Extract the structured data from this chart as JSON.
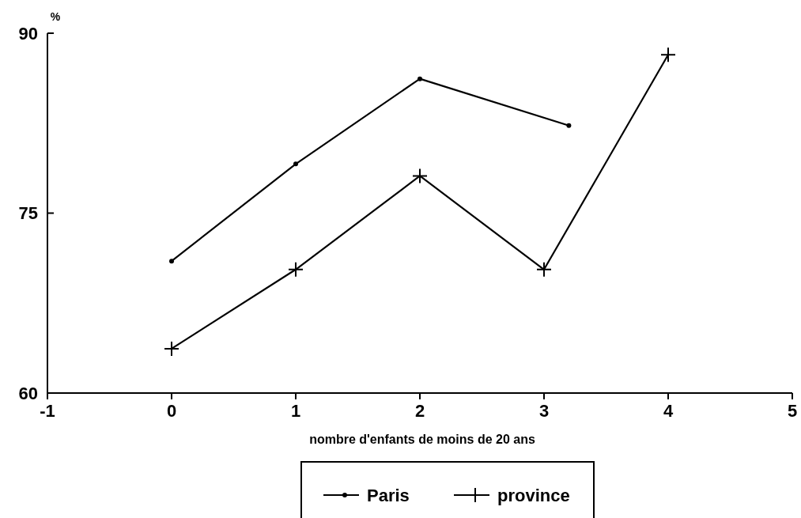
{
  "chart_data": {
    "type": "line",
    "xlabel": "nombre d'enfants de moins de 20 ans",
    "ylabel": "%",
    "xlim": [
      -1,
      5
    ],
    "xticks": [
      -1,
      0,
      1,
      2,
      3,
      4,
      5
    ],
    "ylim": [
      60,
      90
    ],
    "yticks": [
      60,
      75,
      90
    ],
    "grid": false,
    "legend": "bottom",
    "series": [
      {
        "name": "Paris",
        "color": "#000000",
        "marker": "circle",
        "x": [
          0,
          1,
          2,
          3.2
        ],
        "values": [
          71,
          79.1,
          86.2,
          82.3
        ]
      },
      {
        "name": "province",
        "color": "#000000",
        "marker": "cross",
        "x": [
          0,
          1,
          2,
          3,
          4
        ],
        "values": [
          63.7,
          70.3,
          78.1,
          70.3,
          88.2
        ]
      }
    ]
  }
}
